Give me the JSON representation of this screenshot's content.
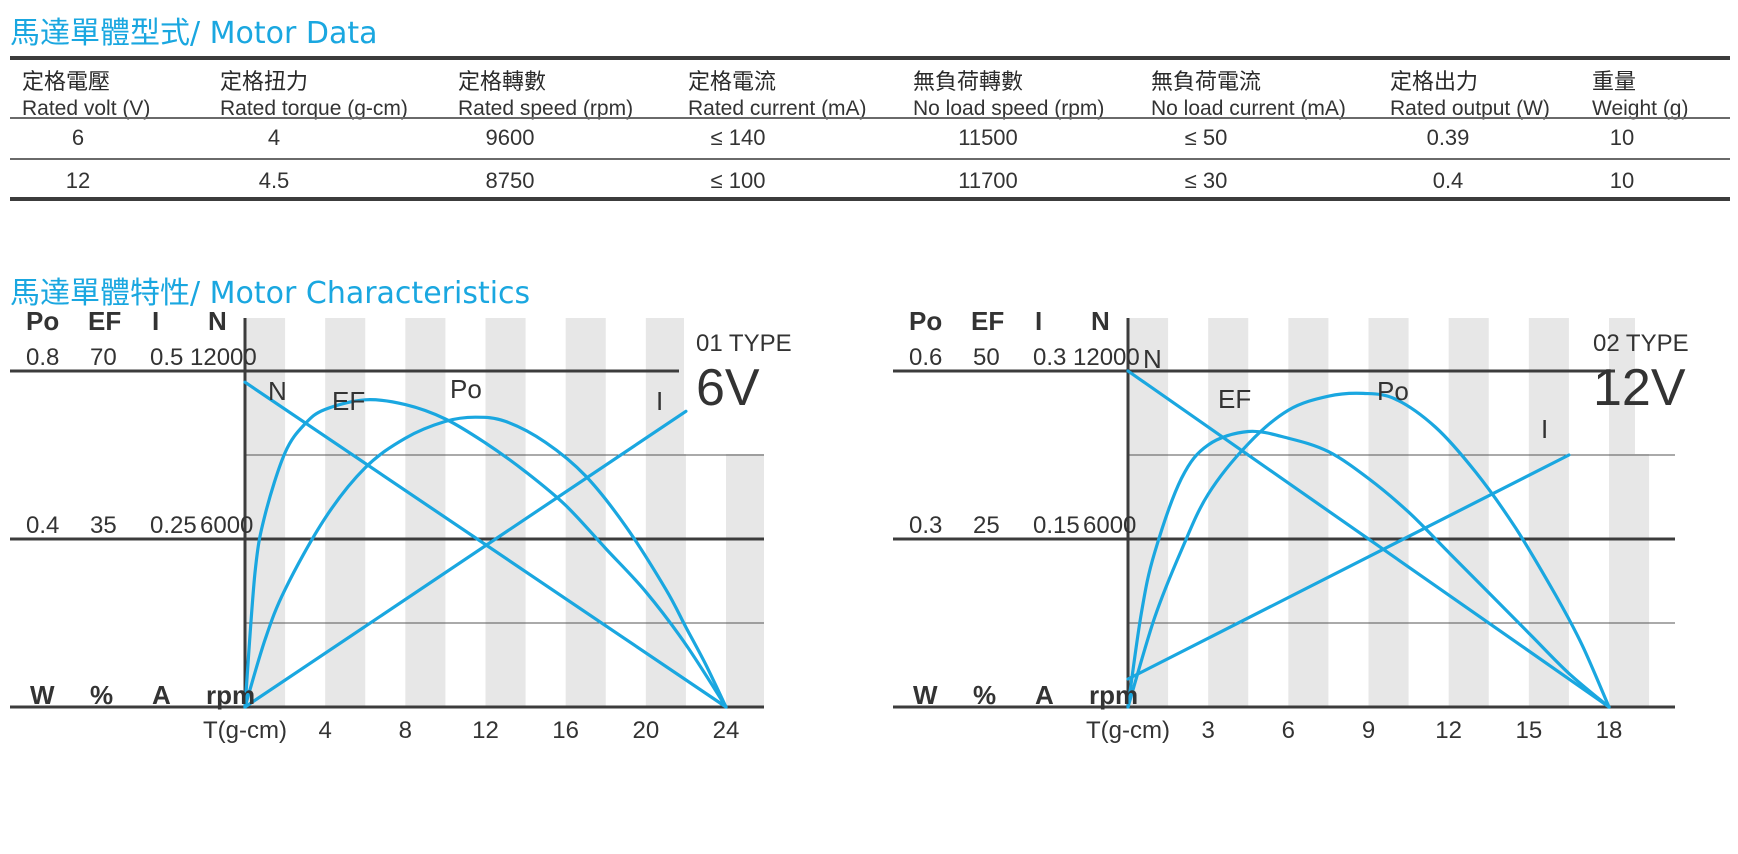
{
  "titles": {
    "motor_data": "馬達單體型式/ Motor Data",
    "motor_characteristics": "馬達單體特性/ Motor Characteristics"
  },
  "spec_table": {
    "columns": [
      {
        "zh": "定格電壓",
        "en": "Rated volt (V)"
      },
      {
        "zh": "定格扭力",
        "en": "Rated torque (g-cm)"
      },
      {
        "zh": "定格轉數",
        "en": "Rated speed (rpm)"
      },
      {
        "zh": "定格電流",
        "en": "Rated current (mA)"
      },
      {
        "zh": "無負荷轉數",
        "en": "No load speed (rpm)"
      },
      {
        "zh": "無負荷電流",
        "en": "No load current (mA)"
      },
      {
        "zh": "定格出力",
        "en": "Rated output (W)"
      },
      {
        "zh": "重量",
        "en": "Weight (g)"
      }
    ],
    "rows": [
      [
        "6",
        "4",
        "9600",
        "≤ 140",
        "11500",
        "≤ 50",
        "0.39",
        "10"
      ],
      [
        "12",
        "4.5",
        "8750",
        "≤ 100",
        "11700",
        "≤ 30",
        "0.4",
        "10"
      ]
    ]
  },
  "colors": {
    "accent": "#1aa7e0",
    "curve": "#1aa7e0",
    "band": "#e7e7e7",
    "rule": "#3c3c3c"
  },
  "chart_data": [
    {
      "type": "line",
      "type_label": "01 TYPE",
      "voltage_label": "6V",
      "axis_headers": [
        "Po",
        "EF",
        "I",
        "N"
      ],
      "axis_top": [
        "0.8",
        "70",
        "0.5",
        "12000"
      ],
      "axis_mid": [
        "0.4",
        "35",
        "0.25",
        "6000"
      ],
      "axis_units": [
        "W",
        "%",
        "A",
        "rpm"
      ],
      "xlabel": "T(g-cm)",
      "x_ticks": [
        4,
        8,
        12,
        16,
        20,
        24
      ],
      "xlim": [
        0,
        26
      ],
      "y_max": {
        "Po": 0.8,
        "EF": 70,
        "I": 0.5,
        "N": 12000
      },
      "series": [
        {
          "name": "N",
          "x": [
            0,
            24
          ],
          "values": [
            11600,
            0
          ]
        },
        {
          "name": "EF",
          "x": [
            0,
            0.5,
            1,
            2,
            3,
            4,
            6,
            8,
            10,
            12,
            14,
            16,
            18,
            20,
            22,
            24
          ],
          "values": [
            0,
            28,
            40,
            53,
            59,
            62,
            64,
            63,
            60,
            55,
            49,
            42,
            33,
            24,
            13,
            0
          ]
        },
        {
          "name": "Po",
          "x": [
            0,
            1,
            2,
            4,
            6,
            8,
            10,
            11.5,
            13,
            15,
            17,
            19,
            21,
            22,
            23,
            24
          ],
          "values": [
            0,
            0.16,
            0.28,
            0.45,
            0.57,
            0.64,
            0.68,
            0.69,
            0.68,
            0.63,
            0.55,
            0.43,
            0.28,
            0.19,
            0.1,
            0
          ]
        },
        {
          "name": "I",
          "x": [
            0,
            22
          ],
          "values": [
            0,
            0.44
          ]
        }
      ]
    },
    {
      "type": "line",
      "type_label": "02 TYPE",
      "voltage_label": "12V",
      "axis_headers": [
        "Po",
        "EF",
        "I",
        "N"
      ],
      "axis_top": [
        "0.6",
        "50",
        "0.3",
        "12000"
      ],
      "axis_mid": [
        "0.3",
        "25",
        "0.15",
        "6000"
      ],
      "axis_units": [
        "W",
        "%",
        "A",
        "rpm"
      ],
      "xlabel": "T(g-cm)",
      "x_ticks": [
        3,
        6,
        9,
        12,
        15,
        18
      ],
      "xlim": [
        0,
        18.5
      ],
      "y_max": {
        "Po": 0.6,
        "EF": 50,
        "I": 0.3,
        "N": 12000
      },
      "series": [
        {
          "name": "N",
          "x": [
            0,
            18
          ],
          "values": [
            12000,
            0
          ]
        },
        {
          "name": "EF",
          "x": [
            0,
            0.5,
            1,
            2,
            3,
            4.5,
            6,
            7.5,
            9,
            10.5,
            12,
            13.5,
            15,
            16.5,
            18
          ],
          "values": [
            0,
            14,
            23,
            34,
            39,
            41,
            40,
            38,
            34,
            29,
            23,
            17,
            11,
            5,
            0
          ]
        },
        {
          "name": "Po",
          "x": [
            0,
            1,
            2,
            3,
            4.5,
            6,
            7.5,
            8.8,
            10,
            11.5,
            13,
            14.5,
            16,
            17,
            18
          ],
          "values": [
            0,
            0.16,
            0.28,
            0.38,
            0.47,
            0.53,
            0.555,
            0.56,
            0.55,
            0.5,
            0.42,
            0.32,
            0.2,
            0.11,
            0
          ]
        },
        {
          "name": "I",
          "x": [
            0,
            16.5
          ],
          "values": [
            0.025,
            0.225
          ]
        }
      ]
    }
  ]
}
